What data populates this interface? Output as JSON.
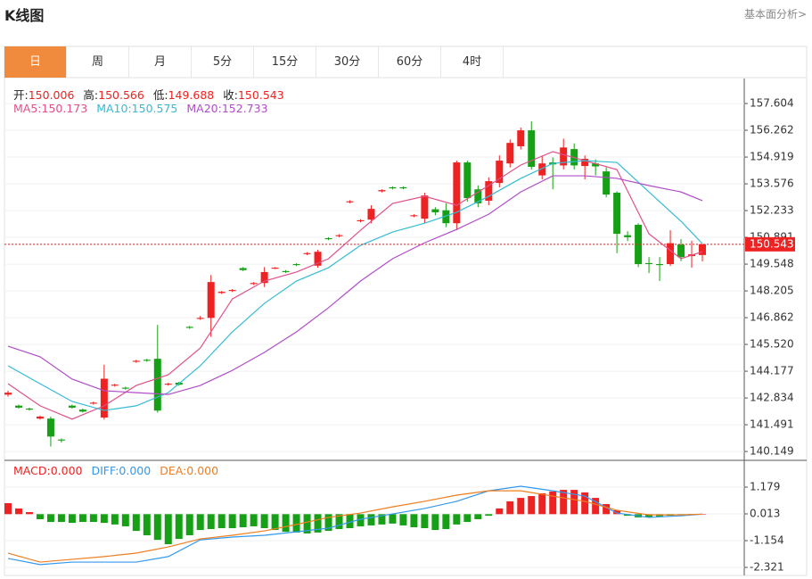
{
  "header": {
    "title": "K线图",
    "link": "基本面分析>"
  },
  "tabs": [
    "日",
    "周",
    "月",
    "5分",
    "15分",
    "30分",
    "60分",
    "4时"
  ],
  "active_tab": 0,
  "chart_data": [
    {
      "type": "candlestick",
      "ohlc_labels": [
        {
          "label": "开:",
          "value": 150.006
        },
        {
          "label": "高:",
          "value": 150.566
        },
        {
          "label": "低:",
          "value": 149.688
        },
        {
          "label": "收:",
          "value": 150.543
        }
      ],
      "current_price": 150.543,
      "up_color": "#ee2222",
      "down_color": "#15a015",
      "grid": true,
      "ylim": [
        139.75,
        158.86
      ],
      "yticks": [
        157.604,
        156.262,
        154.919,
        153.576,
        152.233,
        150.891,
        149.548,
        148.205,
        146.862,
        {
          "value": 145.52,
          "label": "145.520"
        },
        144.177,
        142.834,
        141.491,
        140.149
      ],
      "open": [
        143.0,
        142.45,
        142.3,
        141.8,
        141.8,
        140.75,
        142.45,
        142.25,
        142.55,
        141.85,
        143.45,
        143.35,
        144.65,
        144.75,
        144.8,
        143.5,
        143.6,
        146.4,
        146.8,
        146.85,
        148.1,
        148.2,
        149.35,
        148.55,
        148.6,
        149.32,
        149.2,
        149.55,
        150.05,
        149.47,
        150.85,
        150.95,
        152.65,
        151.7,
        151.78,
        153.2,
        153.4,
        153.4,
        151.95,
        151.83,
        152.3,
        152.25,
        151.6,
        154.65,
        153.3,
        152.73,
        153.62,
        154.6,
        155.46,
        156.26,
        154.0,
        154.65,
        154.5,
        155.32,
        154.47,
        154.6,
        154.2,
        153.13,
        151.0,
        151.52,
        149.6,
        149.55,
        149.55,
        150.53,
        149.95,
        150.006
      ],
      "high": [
        143.2,
        142.5,
        142.35,
        141.95,
        141.9,
        140.8,
        142.5,
        142.3,
        142.65,
        144.5,
        143.55,
        143.4,
        144.75,
        144.8,
        146.5,
        143.6,
        143.65,
        146.45,
        146.95,
        149.0,
        148.2,
        148.3,
        149.4,
        148.65,
        149.4,
        149.4,
        149.25,
        149.6,
        150.15,
        150.27,
        150.9,
        151.05,
        152.75,
        151.8,
        152.5,
        153.3,
        153.45,
        153.45,
        152.05,
        153.13,
        152.4,
        152.6,
        154.74,
        154.74,
        153.5,
        153.9,
        155.0,
        155.8,
        156.4,
        156.71,
        155.0,
        154.9,
        155.84,
        155.6,
        155.0,
        154.8,
        154.4,
        153.2,
        151.2,
        151.6,
        149.9,
        149.9,
        151.25,
        150.8,
        150.72,
        150.566
      ],
      "low": [
        142.9,
        142.3,
        142.2,
        141.75,
        140.4,
        140.6,
        142.3,
        142.1,
        142.5,
        141.75,
        143.4,
        143.25,
        144.6,
        144.65,
        142.1,
        143.45,
        143.45,
        146.3,
        146.75,
        145.9,
        148.05,
        148.15,
        149.2,
        148.5,
        148.4,
        149.3,
        149.1,
        149.45,
        150.0,
        149.37,
        150.75,
        150.9,
        152.6,
        151.65,
        151.6,
        153.15,
        153.3,
        153.3,
        151.9,
        151.6,
        152.0,
        151.4,
        151.25,
        152.68,
        152.4,
        152.5,
        153.4,
        154.4,
        155.3,
        154.3,
        153.8,
        153.3,
        154.3,
        154.3,
        153.8,
        154.0,
        152.9,
        150.1,
        150.7,
        149.4,
        149.1,
        148.7,
        149.46,
        149.7,
        149.37,
        149.688
      ],
      "close": [
        143.1,
        142.35,
        142.25,
        141.9,
        140.9,
        140.7,
        142.35,
        142.15,
        142.6,
        143.8,
        143.5,
        143.3,
        144.7,
        144.7,
        142.2,
        143.55,
        143.5,
        146.35,
        146.85,
        148.65,
        148.16,
        148.25,
        149.25,
        148.6,
        149.15,
        149.37,
        149.15,
        149.5,
        150.1,
        150.17,
        150.8,
        151.0,
        152.7,
        151.75,
        152.32,
        153.26,
        153.35,
        153.35,
        152.0,
        152.99,
        152.15,
        151.6,
        154.65,
        152.86,
        152.6,
        153.71,
        154.74,
        155.63,
        156.26,
        154.43,
        154.6,
        154.55,
        155.4,
        154.5,
        154.83,
        154.45,
        153.04,
        151.07,
        150.9,
        149.55,
        149.55,
        149.5,
        150.6,
        149.9,
        150.04,
        150.543
      ],
      "series": [
        {
          "name": "MA5:",
          "legend_value": 150.173,
          "color": "#e0508a",
          "x": [
            0,
            3,
            6,
            9,
            12,
            15,
            18,
            21,
            24,
            27,
            30,
            33,
            36,
            39,
            42,
            45,
            48,
            51,
            54,
            57,
            60,
            63,
            65
          ],
          "values": [
            143.55,
            142.44,
            141.77,
            142.44,
            143.46,
            144.0,
            145.34,
            147.8,
            148.7,
            149.15,
            149.82,
            151.25,
            152.59,
            152.95,
            152.5,
            153.49,
            154.52,
            155.19,
            154.74,
            154.29,
            151.07,
            149.82,
            150.173
          ]
        },
        {
          "name": "MA10:",
          "legend_value": 150.575,
          "color": "#34bcd4",
          "x": [
            0,
            3,
            6,
            9,
            12,
            15,
            18,
            21,
            24,
            27,
            30,
            33,
            36,
            39,
            42,
            45,
            48,
            51,
            54,
            57,
            60,
            63,
            65
          ],
          "values": [
            144.45,
            143.55,
            142.66,
            142.21,
            142.44,
            143.1,
            144.45,
            146.15,
            147.58,
            148.7,
            149.37,
            150.49,
            151.16,
            151.6,
            152.15,
            152.95,
            153.85,
            154.6,
            154.74,
            154.65,
            153.17,
            151.7,
            150.575
          ]
        },
        {
          "name": "MA20:",
          "legend_value": 152.733,
          "color": "#b04dc8",
          "x": [
            0,
            3,
            6,
            9,
            12,
            15,
            18,
            21,
            24,
            27,
            30,
            33,
            36,
            39,
            42,
            45,
            48,
            51,
            54,
            57,
            60,
            63,
            65
          ],
          "values": [
            145.43,
            144.9,
            143.78,
            143.2,
            143.1,
            143.01,
            143.46,
            144.22,
            145.12,
            146.15,
            147.36,
            148.7,
            149.82,
            150.62,
            151.29,
            152.05,
            153.17,
            153.98,
            153.98,
            153.85,
            153.49,
            153.17,
            152.733
          ]
        }
      ]
    },
    {
      "type": "macd",
      "ylim": [
        -2.672,
        2.309
      ],
      "yticks": [
        1.179,
        0.013,
        -1.154,
        -2.321
      ],
      "histogram": {
        "name": "MACD:",
        "legend_value": "0.000",
        "up_color": "#ee2222",
        "down_color": "#15a015",
        "values": [
          0.48,
          0.25,
          0.09,
          -0.22,
          -0.34,
          -0.34,
          -0.38,
          -0.34,
          -0.34,
          -0.38,
          -0.45,
          -0.53,
          -0.73,
          -0.92,
          -1.12,
          -1.31,
          -1.08,
          -0.92,
          -0.69,
          -0.65,
          -0.61,
          -0.61,
          -0.57,
          -0.53,
          -0.61,
          -0.69,
          -0.77,
          -0.8,
          -0.84,
          -0.8,
          -0.73,
          -0.65,
          -0.61,
          -0.53,
          -0.49,
          -0.45,
          -0.41,
          -0.49,
          -0.57,
          -0.61,
          -0.69,
          -0.65,
          -0.45,
          -0.34,
          -0.22,
          -0.07,
          0.25,
          0.56,
          0.71,
          0.79,
          0.91,
          0.99,
          1.06,
          1.06,
          0.95,
          0.71,
          0.44,
          0.17,
          -0.07,
          -0.14,
          -0.14,
          -0.1,
          -0.07,
          -0.03,
          -0.03,
          0
        ]
      },
      "series": [
        {
          "name": "DIFF:",
          "legend_value": "0.000",
          "color": "#3399ee",
          "x": [
            0,
            3,
            6,
            9,
            12,
            15,
            18,
            21,
            24,
            27,
            30,
            33,
            36,
            39,
            42,
            45,
            48,
            51,
            54,
            57,
            60,
            63,
            65
          ],
          "values": [
            -1.93,
            -2.2,
            -2.09,
            -2.09,
            -2.09,
            -1.85,
            -1.12,
            -1.0,
            -0.92,
            -0.77,
            -0.61,
            -0.22,
            0.01,
            0.25,
            0.56,
            1.02,
            1.22,
            1.02,
            0.79,
            0.05,
            -0.14,
            -0.07,
            0
          ]
        },
        {
          "name": "DEA:",
          "legend_value": "0.000",
          "color": "#f07d1e",
          "x": [
            0,
            3,
            6,
            9,
            12,
            15,
            18,
            21,
            24,
            27,
            30,
            33,
            36,
            39,
            42,
            45,
            48,
            51,
            54,
            57,
            60,
            63,
            65
          ],
          "values": [
            -1.7,
            -2.09,
            -1.97,
            -1.85,
            -1.7,
            -1.43,
            -1.08,
            -0.92,
            -0.73,
            -0.45,
            -0.14,
            0.05,
            0.32,
            0.56,
            0.83,
            1.02,
            1.02,
            0.79,
            0.56,
            0.17,
            -0.03,
            -0.03,
            0
          ]
        }
      ]
    }
  ]
}
